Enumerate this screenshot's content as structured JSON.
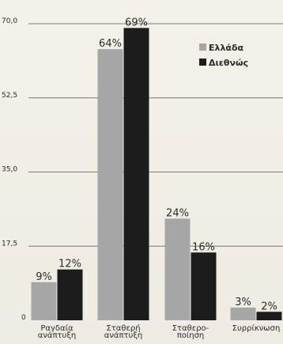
{
  "chart_data": {
    "type": "bar",
    "categories": [
      [
        "Ραγδαία",
        "ανάπτυξη"
      ],
      [
        "Σταθερή",
        "ανάπτυξη"
      ],
      [
        "Σταθερο-",
        "ποίηση"
      ],
      [
        "Συρρίκνωση"
      ]
    ],
    "series": [
      {
        "name": "Ελλάδα",
        "values": [
          9,
          64,
          24,
          3
        ],
        "labels": [
          "9%",
          "64%",
          "24%",
          "3%"
        ],
        "color": "#a6a6a6"
      },
      {
        "name": "Διεθνώς",
        "values": [
          12,
          69,
          16,
          2
        ],
        "labels": [
          "12%",
          "69%",
          "16%",
          "2%"
        ],
        "color": "#1c1c1c"
      }
    ],
    "y_ticks": [
      "0",
      "17,5",
      "35,0",
      "52,5",
      "70,0"
    ],
    "y_tick_values": [
      0,
      17.5,
      35.0,
      52.5,
      70.0
    ],
    "ylim": [
      0,
      70
    ],
    "grid": true,
    "legend_position": "top-right",
    "title": "",
    "xlabel": "",
    "ylabel": ""
  }
}
